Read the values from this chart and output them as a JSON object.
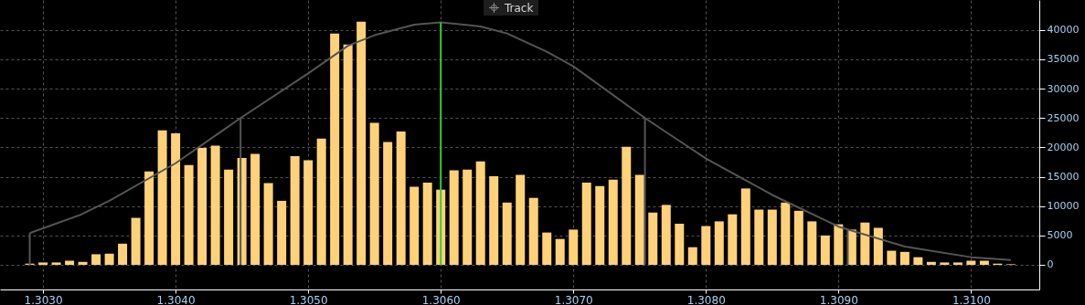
{
  "chart_data": {
    "type": "bar",
    "annotations": [
      "Track"
    ],
    "x": [
      1.3029,
      1.303,
      1.3031,
      1.3032,
      1.3033,
      1.3034,
      1.3035,
      1.3036,
      1.3037,
      1.3038,
      1.3039,
      1.304,
      1.3041,
      1.3042,
      1.3043,
      1.3044,
      1.3045,
      1.3046,
      1.3047,
      1.3048,
      1.3049,
      1.305,
      1.3051,
      1.3052,
      1.3053,
      1.3054,
      1.3055,
      1.3056,
      1.3057,
      1.3058,
      1.3059,
      1.306,
      1.3061,
      1.3062,
      1.3063,
      1.3064,
      1.3065,
      1.3066,
      1.3067,
      1.3068,
      1.3069,
      1.307,
      1.3071,
      1.3072,
      1.3073,
      1.3074,
      1.3075,
      1.3076,
      1.3077,
      1.3078,
      1.3079,
      1.308,
      1.3081,
      1.3082,
      1.3083,
      1.3084,
      1.3085,
      1.3086,
      1.3087,
      1.3088,
      1.3089,
      1.309,
      1.3091,
      1.3092,
      1.3093,
      1.3094,
      1.3095,
      1.3096,
      1.3097,
      1.3098,
      1.3099,
      1.31,
      1.3101,
      1.3102,
      1.3103
    ],
    "series": [
      {
        "color": "#ffd27a",
        "values": [
          200,
          400,
          400,
          700,
          500,
          1800,
          1900,
          3600,
          8000,
          15900,
          22900,
          22400,
          17000,
          19900,
          20300,
          16200,
          18200,
          18900,
          13900,
          10900,
          18500,
          17800,
          21500,
          39400,
          37500,
          41400,
          24200,
          20900,
          22700,
          13300,
          14000,
          12800,
          16100,
          16200,
          17600,
          15100,
          10600,
          15300,
          11400,
          5500,
          4400,
          6000,
          14000,
          13400,
          14500,
          20100,
          15300,
          8900,
          10200,
          7000,
          3000,
          6600,
          7400,
          8600,
          13000,
          9400,
          9400,
          10600,
          9200,
          7400,
          5000,
          6900,
          6000,
          7200,
          6300,
          2400,
          2200,
          1300,
          500,
          400,
          400,
          700,
          700,
          200,
          100
        ]
      },
      {
        "type": "line",
        "color": "#555555",
        "x": [
          1.3029,
          1.30328,
          1.3035,
          1.304,
          1.30449,
          1.305,
          1.3053,
          1.3055,
          1.3058,
          1.306,
          1.3063,
          1.3065,
          1.3068,
          1.307,
          1.30754,
          1.308,
          1.3085,
          1.309,
          1.3095,
          1.31,
          1.3103
        ],
        "values": [
          5400,
          8500,
          10900,
          17300,
          25000,
          32600,
          37300,
          39100,
          40900,
          41300,
          40600,
          39400,
          36300,
          33800,
          25000,
          18100,
          11900,
          6500,
          3100,
          1300,
          800
        ]
      },
      {
        "type": "line",
        "color": "#555555",
        "x": [
          1.3029,
          1.3029
        ],
        "values": [
          0,
          5400
        ]
      },
      {
        "type": "line",
        "color": "#555555",
        "x": [
          1.30449,
          1.30449
        ],
        "values": [
          0,
          25000
        ]
      },
      {
        "type": "line",
        "color": "#555555",
        "x": [
          1.30754,
          1.30754
        ],
        "values": [
          0,
          25000
        ]
      },
      {
        "type": "line",
        "color": "#555555",
        "x": [
          1.30907,
          1.30907
        ],
        "values": [
          0,
          6000
        ]
      },
      {
        "type": "line",
        "color": "#33cc33",
        "x": [
          1.306,
          1.306
        ],
        "values": [
          41300,
          0
        ]
      }
    ],
    "xlim": [
      1.30271,
      1.31048
    ],
    "xticks": [
      {
        "value": 1.303,
        "label": "1.3030"
      },
      {
        "value": 1.304,
        "label": "1.3040"
      },
      {
        "value": 1.305,
        "label": "1.3050"
      },
      {
        "value": 1.306,
        "label": "1.3060"
      },
      {
        "value": 1.307,
        "label": "1.3070"
      },
      {
        "value": 1.308,
        "label": "1.3080"
      },
      {
        "value": 1.309,
        "label": "1.3090"
      },
      {
        "value": 1.31,
        "label": "1.3100"
      }
    ],
    "ylim": [
      -4200,
      45100
    ],
    "yticks": [
      0,
      5000,
      10000,
      15000,
      20000,
      25000,
      30000,
      35000,
      40000
    ],
    "grid": true
  }
}
